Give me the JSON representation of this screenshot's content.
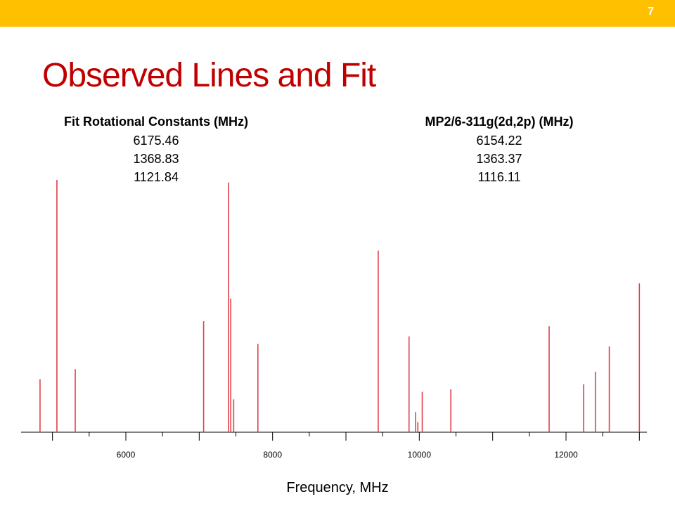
{
  "slide": {
    "number": "7",
    "title": "Observed Lines and Fit"
  },
  "fit_constants": {
    "header": "Fit Rotational Constants (MHz)",
    "values": [
      "6175.46",
      "1368.83",
      "1121.84"
    ]
  },
  "mp2_constants": {
    "header": "MP2/6-311g(2d,2p) (MHz)",
    "values": [
      "6154.22",
      "1363.37",
      "1116.11"
    ]
  },
  "colors": {
    "accent_bar": "#FFC000",
    "title": "#C00000",
    "lines": "#E0404A",
    "axis": "#000000"
  },
  "chart_data": {
    "type": "bar",
    "xlabel": "Frequency, MHz",
    "ylabel": "",
    "xlim": [
      4700,
      13100
    ],
    "ylim": [
      0,
      1
    ],
    "grid": false,
    "xticks": [
      6000,
      8000,
      10000,
      12000
    ],
    "lines": [
      {
        "x": 4830,
        "y": 0.21
      },
      {
        "x": 5060,
        "y": 1.0
      },
      {
        "x": 5310,
        "y": 0.25
      },
      {
        "x": 7060,
        "y": 0.44
      },
      {
        "x": 7400,
        "y": 0.99
      },
      {
        "x": 7430,
        "y": 0.53
      },
      {
        "x": 7470,
        "y": 0.13
      },
      {
        "x": 7800,
        "y": 0.35
      },
      {
        "x": 9440,
        "y": 0.72
      },
      {
        "x": 9860,
        "y": 0.38
      },
      {
        "x": 9950,
        "y": 0.08
      },
      {
        "x": 9980,
        "y": 0.04
      },
      {
        "x": 10040,
        "y": 0.16
      },
      {
        "x": 10430,
        "y": 0.17
      },
      {
        "x": 11770,
        "y": 0.42
      },
      {
        "x": 12240,
        "y": 0.19
      },
      {
        "x": 12400,
        "y": 0.24
      },
      {
        "x": 12590,
        "y": 0.34
      },
      {
        "x": 13000,
        "y": 0.59
      }
    ]
  }
}
